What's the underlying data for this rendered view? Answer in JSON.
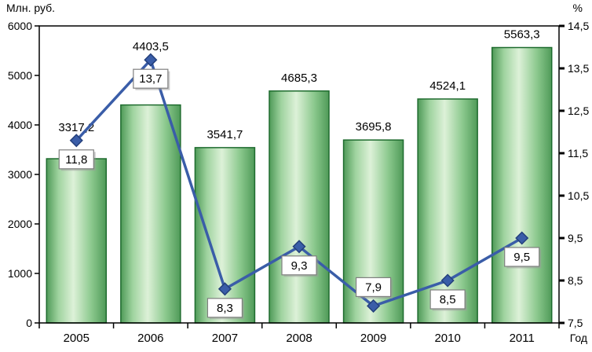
{
  "chart_data": {
    "type": "combo",
    "categories": [
      "2005",
      "2006",
      "2007",
      "2008",
      "2009",
      "2010",
      "2011"
    ],
    "series": [
      {
        "name": "bars-mln-rub",
        "type": "bar",
        "values": [
          3317.2,
          4403.5,
          3541.7,
          4685.3,
          3695.8,
          4524.1,
          5563.3
        ],
        "labels": [
          "3317,2",
          "4403,5",
          "3541,7",
          "4685,3",
          "3695,8",
          "4524,1",
          "5563,3"
        ]
      },
      {
        "name": "line-percent",
        "type": "line",
        "values": [
          11.8,
          13.7,
          8.3,
          9.3,
          7.9,
          8.5,
          9.5
        ],
        "labels": [
          "11,8",
          "13,7",
          "8,3",
          "9,3",
          "7,9",
          "8,5",
          "9,5"
        ]
      }
    ],
    "left_axis": {
      "title": "Млн. руб.",
      "min": 0,
      "max": 6000,
      "step": 1000,
      "tick_labels": [
        "0",
        "1000",
        "2000",
        "3000",
        "4000",
        "5000",
        "6000"
      ]
    },
    "right_axis": {
      "title": "%",
      "min": 7.5,
      "max": 14.5,
      "step": 1,
      "tick_labels": [
        "7,5",
        "8,5",
        "9,5",
        "10,5",
        "11,5",
        "12,5",
        "13,5",
        "14,5"
      ]
    },
    "x_axis": {
      "title": "Год"
    },
    "layout": {
      "grid": false,
      "legend": "none"
    },
    "colors": {
      "bar_edge": "#4f9a58",
      "bar_mid": "#ddf1d8",
      "bar_border": "#1e6b2e",
      "line": "#3a5da8",
      "marker_border": "#24407c",
      "label_box_border": "#7f7f7f",
      "plot_border": "#000000"
    }
  }
}
